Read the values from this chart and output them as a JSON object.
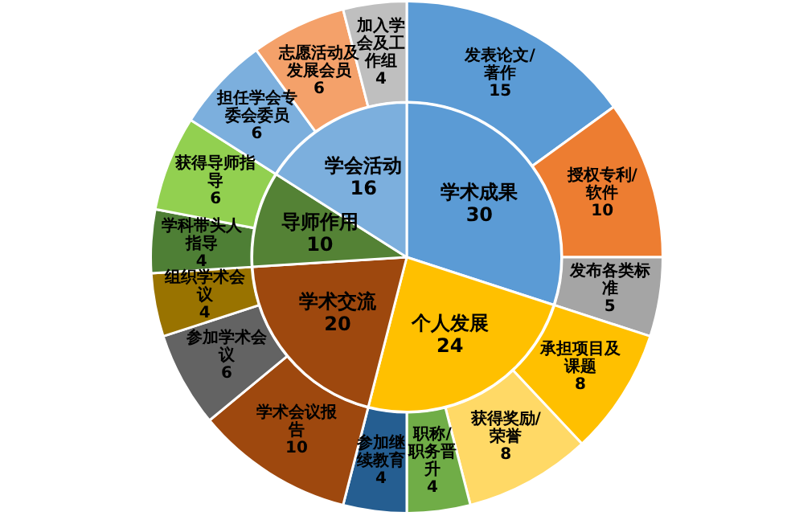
{
  "chart_data": [
    {
      "type": "pie",
      "categories": [
        "学术成果",
        "个人发展",
        "学术交流",
        "导师作用",
        "学会活动"
      ],
      "values": [
        30,
        24,
        20,
        10,
        16
      ],
      "colors": [
        "#5b9bd5",
        "#ffc000",
        "#9e480e",
        "#548235",
        "#7cafdd"
      ],
      "data_labels": true
    },
    {
      "type": "donut",
      "categories": [
        "发表论文/著作",
        "授权专利/软件",
        "发布各类标准",
        "承担项目及课题",
        "获得奖励/荣誉",
        "职称/职务晋升",
        "参加继续教育",
        "学术会议报告",
        "参加学术会议",
        "组织学术会议",
        "学科带头人指导",
        "获得导师指导",
        "担任学会专委会委员",
        "志愿活动及发展会员",
        "加入学会及工作组"
      ],
      "values": [
        15,
        10,
        5,
        8,
        8,
        4,
        4,
        10,
        6,
        4,
        4,
        6,
        6,
        6,
        4
      ],
      "colors": [
        "#5b9bd5",
        "#ed7d31",
        "#a5a5a5",
        "#ffc000",
        "#ffd966",
        "#70ad47",
        "#255e91",
        "#9e480e",
        "#636363",
        "#997300",
        "#4e7f35",
        "#92d050",
        "#7cafdd",
        "#f4a16a",
        "#bfbfbf"
      ],
      "data_labels": true
    }
  ]
}
